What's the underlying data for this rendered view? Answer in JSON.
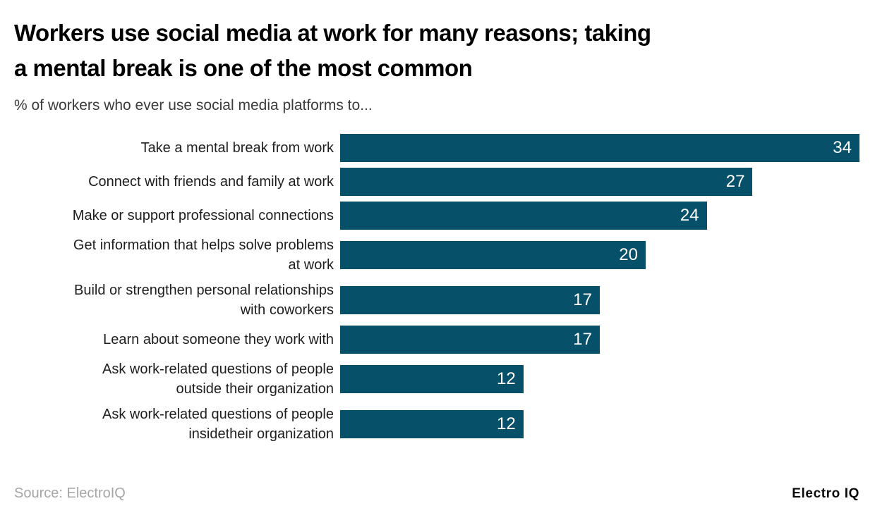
{
  "header": {
    "title_display": "Workers use social media at work for many reasons; taking\na mental break is one of the most common",
    "subtitle": "% of workers who ever use social media platforms to..."
  },
  "chart_data": {
    "type": "bar",
    "orientation": "horizontal",
    "title": "Workers use social media at work for many reasons; taking a mental break is one of the most common",
    "subtitle": "% of workers who ever use social media platforms to...",
    "categories": [
      "Take a mental break from work",
      "Connect with friends and family at work",
      "Make or support professional connections",
      "Get information that helps solve problems at work",
      "Build or strengthen personal relationships with coworkers",
      "Learn about someone they work with",
      "Ask work-related questions of people outside their organization",
      "Ask work-related questions of people insidetheir organization"
    ],
    "display_labels": [
      "Take a mental break from work",
      "Connect with friends and family at work",
      "Make or support professional connections",
      "Get information that helps solve problems\nat work",
      "Build or strengthen personal relationships\nwith coworkers",
      "Learn about someone they work with",
      "Ask work-related questions of people\noutside their organization",
      "Ask work-related questions of people\ninsidetheir organization"
    ],
    "values": [
      34,
      27,
      24,
      20,
      17,
      17,
      12,
      12
    ],
    "xlim": [
      0,
      34
    ],
    "value_labels_position": "inside-end",
    "grid": false,
    "legend": false,
    "xlabel": "",
    "ylabel": ""
  },
  "footer": {
    "source": "Source: ElectroIQ",
    "brand": "Electro IQ"
  },
  "colors": {
    "bar": "#07506a",
    "value_text": "#ffffff",
    "title": "#000000",
    "subtitle": "#3b3b3b",
    "label": "#1e1e1e",
    "source": "#a5a5a5",
    "brand": "#0a0a0a",
    "background": "#ffffff"
  }
}
